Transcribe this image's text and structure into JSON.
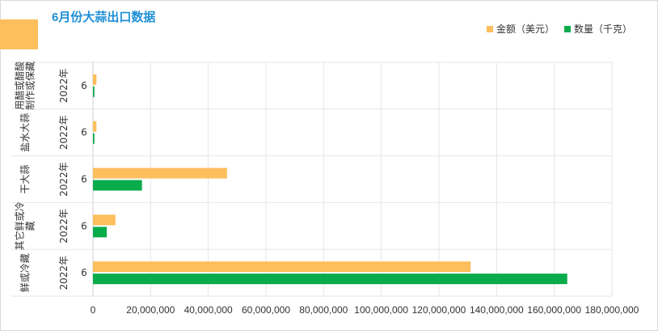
{
  "chart_data": {
    "type": "bar",
    "orientation": "horizontal",
    "title": "6月份大蒜出口数据",
    "categories": [
      {
        "name": "用醋或醋酸制作或保藏",
        "year": "2022年",
        "month": "6"
      },
      {
        "name": "盐水大蒜",
        "year": "2022年",
        "month": "6"
      },
      {
        "name": "干大蒜",
        "year": "2022年",
        "month": "6"
      },
      {
        "name": "其它鲜或冷藏",
        "year": "2022年",
        "month": "6"
      },
      {
        "name": "鲜或冷藏",
        "year": "2022年",
        "month": "6"
      }
    ],
    "series": [
      {
        "name": "金额（美元）",
        "color": "#fdbe5c",
        "values": [
          1200000,
          1200000,
          46500000,
          7800000,
          131000000
        ]
      },
      {
        "name": "数量（千克）",
        "color": "#0aab4b",
        "values": [
          500000,
          500000,
          17000000,
          4800000,
          164500000
        ]
      }
    ],
    "xlim": [
      0,
      180000000
    ],
    "xticks": [
      "0",
      "20,000,000",
      "40,000,000",
      "60,000,000",
      "80,000,000",
      "100,000,000",
      "120,000,000",
      "140,000,000",
      "160,000,000",
      "180,000,000"
    ],
    "legend_position": "top-right",
    "grid": true
  }
}
